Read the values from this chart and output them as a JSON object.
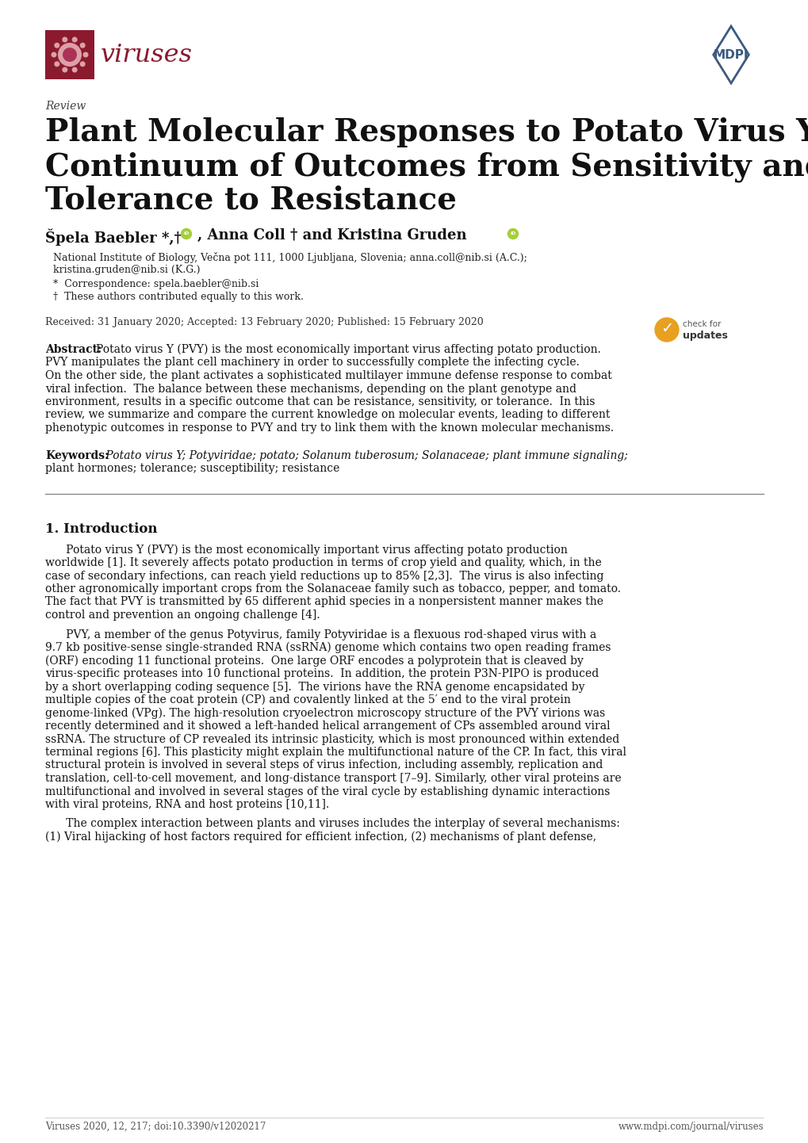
{
  "background_color": "#ffffff",
  "journal_name": "viruses",
  "journal_color": "#8B1A2F",
  "mdpi_color": "#3d5a80",
  "review_label": "Review",
  "title_lines": [
    "Plant Molecular Responses to Potato Virus Y: A",
    "Continuum of Outcomes from Sensitivity and",
    "Tolerance to Resistance"
  ],
  "authors_part1": "Špela Baebler *,†",
  "authors_part2": ", Anna Coll † and Kristina Gruden",
  "affiliation1": "National Institute of Biology, Večna pot 111, 1000 Ljubljana, Slovenia; anna.coll@nib.si (A.C.);",
  "affiliation2": "kristina.gruden@nib.si (K.G.)",
  "correspondence": "*  Correspondence: spela.baebler@nib.si",
  "equal_contrib": "†  These authors contributed equally to this work.",
  "dates": "Received: 31 January 2020; Accepted: 13 February 2020; Published: 15 February 2020",
  "abstract_lines": [
    "Abstract: Potato virus Y (PVY) is the most economically important virus affecting potato production.",
    "PVY manipulates the plant cell machinery in order to successfully complete the infecting cycle.",
    "On the other side, the plant activates a sophisticated multilayer immune defense response to combat",
    "viral infection.  The balance between these mechanisms, depending on the plant genotype and",
    "environment, results in a specific outcome that can be resistance, sensitivity, or tolerance.  In this",
    "review, we summarize and compare the current knowledge on molecular events, leading to different",
    "phenotypic outcomes in response to PVY and try to link them with the known molecular mechanisms."
  ],
  "keywords_line1": " Potato virus Y; Potyviridae; potato; Solanum tuberosum; Solanaceae; plant immune signaling;",
  "keywords_line2": "plant hormones; tolerance; susceptibility; resistance",
  "section_header": "1. Introduction",
  "p1_lines": [
    "      Potato virus Y (PVY) is the most economically important virus affecting potato production",
    "worldwide [1]. It severely affects potato production in terms of crop yield and quality, which, in the",
    "case of secondary infections, can reach yield reductions up to 85% [2,3].  The virus is also infecting",
    "other agronomically important crops from the Solanaceae family such as tobacco, pepper, and tomato.",
    "The fact that PVY is transmitted by 65 different aphid species in a nonpersistent manner makes the",
    "control and prevention an ongoing challenge [4]."
  ],
  "p2_lines": [
    "      PVY, a member of the genus Potyvirus, family Potyviridae is a flexuous rod-shaped virus with a",
    "9.7 kb positive-sense single-stranded RNA (ssRNA) genome which contains two open reading frames",
    "(ORF) encoding 11 functional proteins.  One large ORF encodes a polyprotein that is cleaved by",
    "virus-specific proteases into 10 functional proteins.  In addition, the protein P3N-PIPO is produced",
    "by a short overlapping coding sequence [5].  The virions have the RNA genome encapsidated by",
    "multiple copies of the coat protein (CP) and covalently linked at the 5′ end to the viral protein",
    "genome-linked (VPg). The high-resolution cryoelectron microscopy structure of the PVY virions was",
    "recently determined and it showed a left-handed helical arrangement of CPs assembled around viral",
    "ssRNA. The structure of CP revealed its intrinsic plasticity, which is most pronounced within extended",
    "terminal regions [6]. This plasticity might explain the multifunctional nature of the CP. In fact, this viral",
    "structural protein is involved in several steps of virus infection, including assembly, replication and",
    "translation, cell-to-cell movement, and long-distance transport [7–9]. Similarly, other viral proteins are",
    "multifunctional and involved in several stages of the viral cycle by establishing dynamic interactions",
    "with viral proteins, RNA and host proteins [10,11]."
  ],
  "p3_lines": [
    "      The complex interaction between plants and viruses includes the interplay of several mechanisms:",
    "(1) Viral hijacking of host factors required for efficient infection, (2) mechanisms of plant defense,"
  ],
  "footer_left": "Viruses 2020, 12, 217; doi:10.3390/v12020217",
  "footer_right": "www.mdpi.com/journal/viruses"
}
